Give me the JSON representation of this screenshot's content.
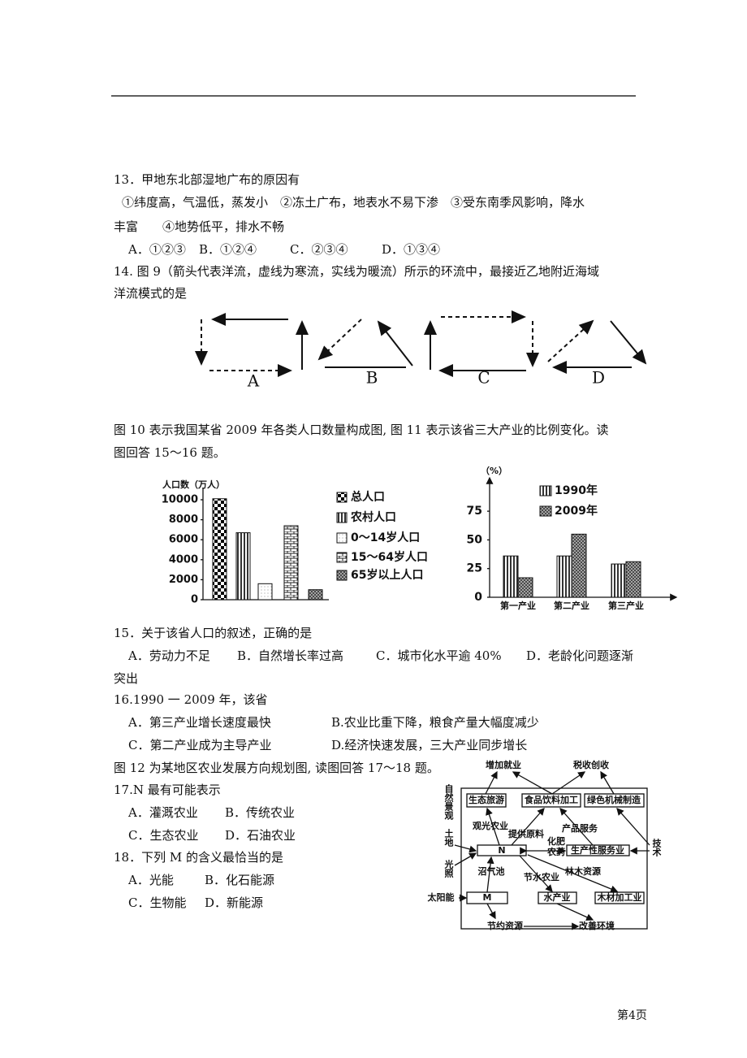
{
  "q13": {
    "stem": "13．甲地东北部湿地广布的原因有",
    "lines": [
      "①纬度高，气温低，蒸发小　②冻土广布，地表水不易下渗　③受东南季风影响，降水",
      "丰富　　④地势低平，排水不畅"
    ],
    "options": [
      "A．①②③",
      "B．①②④",
      "C．②③④",
      "D．①③④"
    ]
  },
  "q14": {
    "stem": [
      "14. 图 9（箭头代表洋流，虚线为寒流，实线为暖流）所示的环流中，最接近乙地附近海域",
      "洋流模式的是"
    ],
    "figure_labels": [
      "A",
      "B",
      "C",
      "D"
    ]
  },
  "intro_15_16": [
    "图 10 表示我国某省 2009 年各类人口数量构成图, 图 11 表示该省三大产业的比例变化。读",
    "图回答 15～16 题。"
  ],
  "figure10": {
    "type": "bar",
    "y_label": "人口数（万人）",
    "categories": [
      "总人口",
      "农村人口",
      "0～14岁人口",
      "15～64岁人口",
      "65岁以上人口"
    ],
    "values": [
      10100,
      6700,
      1600,
      7400,
      1000
    ],
    "ylim": [
      0,
      10000
    ],
    "yticks": [
      0,
      2000,
      4000,
      6000,
      8000,
      10000
    ],
    "legend": "right"
  },
  "figure11": {
    "type": "bar",
    "y_label": "（%）",
    "categories": [
      "第一产业",
      "第二产业",
      "第三产业"
    ],
    "series": [
      {
        "name": "1990年",
        "values": [
          36,
          36,
          29
        ]
      },
      {
        "name": "2009年",
        "values": [
          17,
          55,
          31
        ]
      }
    ],
    "ylim": [
      0,
      100
    ],
    "yticks": [
      0,
      25,
      50,
      75
    ],
    "legend": "top"
  },
  "q15": {
    "stem": "15．关于该省人口的叙述，正确的是",
    "options": [
      "A．劳动力不足",
      "B．自然增长率过高",
      "C．城市化水平逾 40%",
      "D．老龄化问题逐渐"
    ],
    "continuation": "突出"
  },
  "q16": {
    "stem": "16.1990 一 2009 年，该省",
    "options": [
      "A．第三产业增长速度最快",
      "B.农业比重下降，粮食产量大幅度减少",
      "C．第二产业成为主导产业",
      "D.经济快速发展，三大产业同步增长"
    ]
  },
  "intro_17_18": "图 12 为某地区农业发展方向规划图, 读图回答 17～18 题。",
  "q17": {
    "stem": "17.N 最有可能表示",
    "options": [
      "A．灌溉农业",
      "B．传统农业",
      "C．生态农业",
      "D．石油农业"
    ]
  },
  "q18": {
    "stem": "18．下列 M 的含义最恰当的是",
    "options": [
      "A．光能",
      "B．化石能源",
      "C．生物能",
      "D．新能源"
    ]
  },
  "figure12": {
    "labels": [
      "增加就业",
      "税收创收",
      "自然景观",
      "生态旅游",
      "食品饮料加工",
      "绿色机械制造",
      "观光农业",
      "产品服务",
      "提供原料",
      "土地",
      "化肥",
      "农药",
      "N",
      "生产性服务业",
      "技术",
      "光照",
      "沼气池",
      "节水农业",
      "林木资源",
      "太阳能",
      "M",
      "水产业",
      "木材加工业",
      "节约资源",
      "改善环境"
    ]
  },
  "footer": "第4页"
}
